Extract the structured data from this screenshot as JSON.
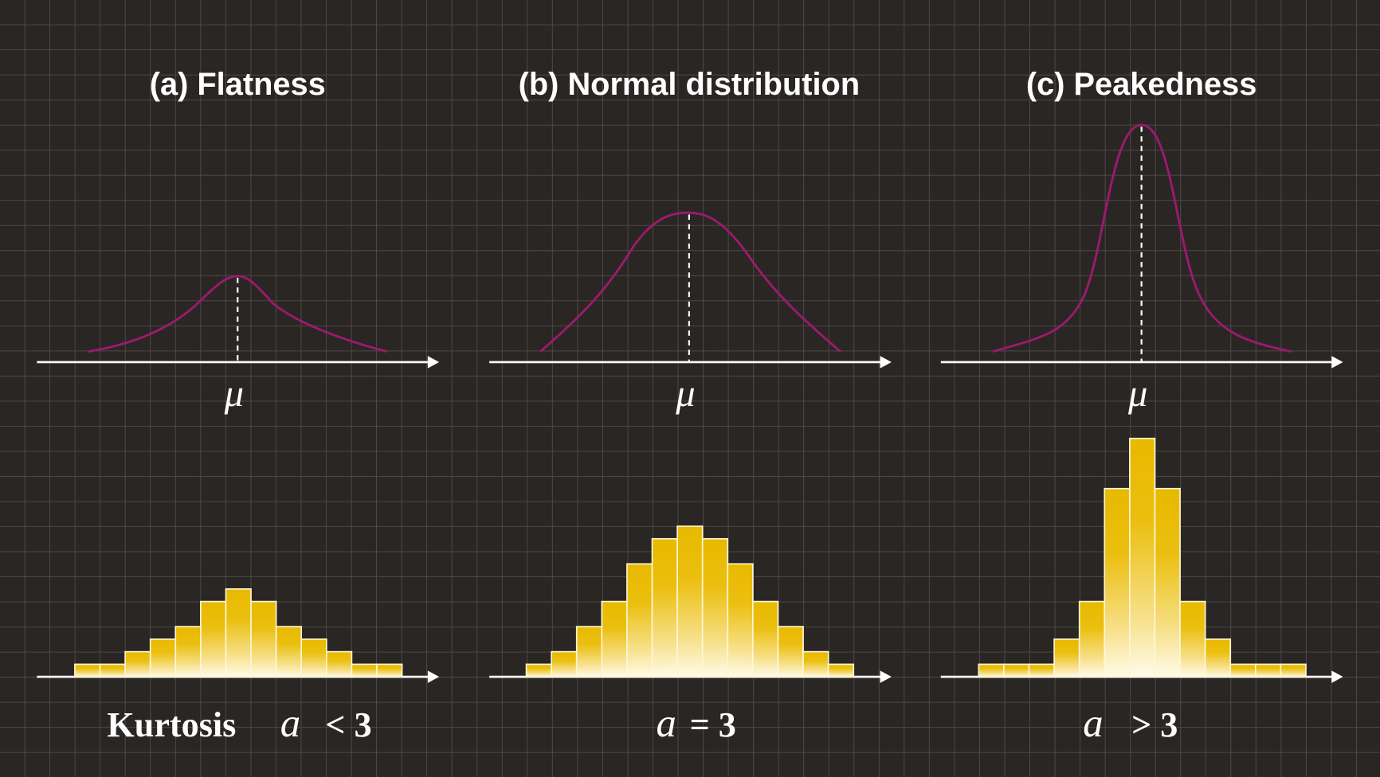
{
  "panels": [
    {
      "title": "(a) Flatness",
      "mean_symbol": "μ",
      "bars": [
        0.5,
        0.5,
        1,
        1.5,
        2,
        3,
        3.5,
        3,
        2,
        1.5,
        1,
        0.5,
        0.5
      ],
      "caption": "Kurtosis",
      "symbol": "a",
      "relation": "< 3"
    },
    {
      "title": "(b) Normal distribution",
      "mean_symbol": "μ",
      "bars": [
        0.5,
        1,
        2,
        3,
        4.5,
        5.5,
        6,
        5.5,
        4.5,
        3,
        2,
        1,
        0.5
      ],
      "symbol": "a",
      "relation": "= 3"
    },
    {
      "title": "(c) Peakedness",
      "mean_symbol": "μ",
      "bars": [
        0.5,
        0.5,
        0.5,
        1.5,
        3,
        7.5,
        9.5,
        7.5,
        3,
        1.5,
        0.5,
        0.5,
        0.5
      ],
      "symbol": "a",
      "relation": "> 3"
    }
  ]
}
